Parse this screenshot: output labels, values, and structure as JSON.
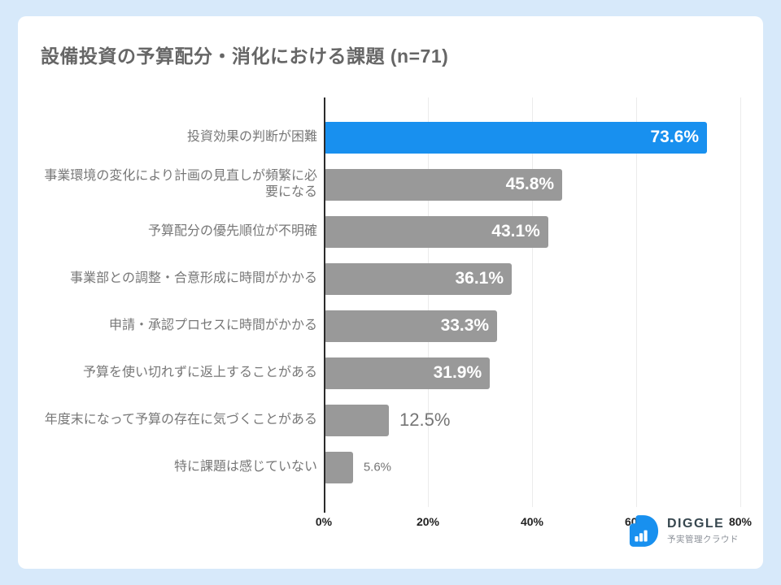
{
  "chart_data": {
    "type": "bar",
    "orientation": "horizontal",
    "title": "設備投資の予算配分・消化における課題 (n=71)",
    "n": 71,
    "categories": [
      "投資効果の判断が困難",
      "事業環境の変化により計画の見直しが頻繁に必要になる",
      "予算配分の優先順位が不明確",
      "事業部との調整・合意形成に時間がかかる",
      "申請・承認プロセスに時間がかかる",
      "予算を使い切れずに返上することがある",
      "年度末になって予算の存在に気づくことがある",
      "特に課題は感じていない"
    ],
    "values": [
      73.6,
      45.8,
      43.1,
      36.1,
      33.3,
      31.9,
      12.5,
      5.6
    ],
    "value_labels": [
      "73.6%",
      "45.8%",
      "43.1%",
      "36.1%",
      "33.3%",
      "31.9%",
      "12.5%",
      "5.6%"
    ],
    "highlight_index": 0,
    "highlight_color": "#1890ef",
    "default_color": "#999999",
    "value_label_color_inside": "#ffffff",
    "value_label_color_outside": "#757575",
    "xlim": [
      0,
      80
    ],
    "x_ticks": [
      {
        "label": "0%",
        "value": 0
      },
      {
        "label": "20%",
        "value": 20
      },
      {
        "label": "40%",
        "value": 40
      },
      {
        "label": "60%",
        "value": 60
      },
      {
        "label": "80%",
        "value": 80
      }
    ],
    "grid": true,
    "legend": "none"
  },
  "logo": {
    "name": "DIGGLE",
    "subtitle": "予実管理クラウド",
    "icon": "diggle-d-barchart-icon",
    "icon_color": "#1890ef"
  }
}
